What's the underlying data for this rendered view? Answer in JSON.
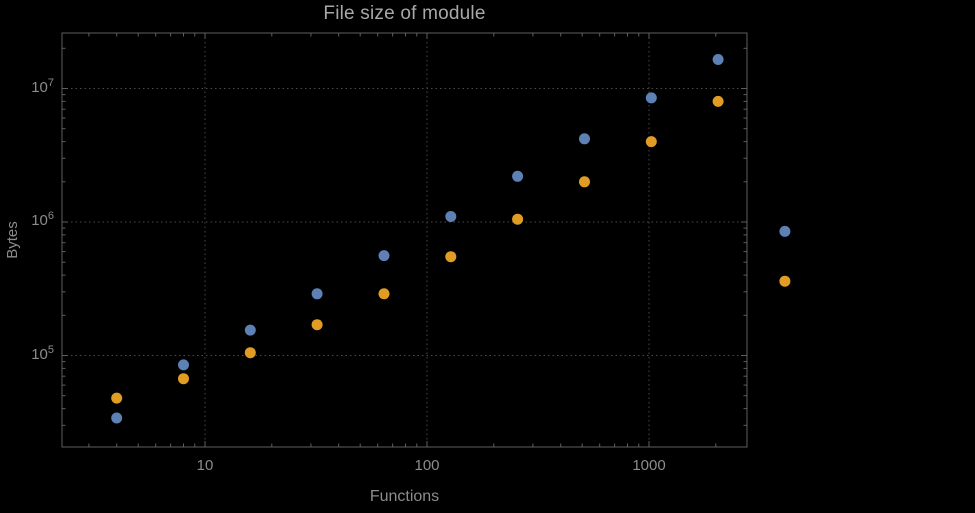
{
  "page": {
    "background": "#000000"
  },
  "chart_data": {
    "type": "scatter",
    "title": "File size of module",
    "xlabel": "Functions",
    "ylabel": "Bytes",
    "x_scale": "log",
    "y_scale": "log",
    "grid": "dotted",
    "legend": "none",
    "x_range": [
      2.3,
      2770
    ],
    "y_range": [
      21000,
      26000000
    ],
    "x": [
      4,
      8,
      16,
      32,
      64,
      128,
      256,
      512,
      1024,
      2048,
      4096
    ],
    "series": [
      {
        "name": "series-blue",
        "color": "#5E81B5",
        "values": [
          34000,
          85000,
          155000,
          290000,
          560000,
          1100000,
          2200000,
          4200000,
          8500000,
          16500000,
          850000
        ]
      },
      {
        "name": "series-orange",
        "color": "#E19C24",
        "values": [
          48000,
          67000,
          105000,
          170000,
          290000,
          550000,
          1050000,
          2000000,
          4000000,
          8000000,
          360000
        ]
      }
    ],
    "x_ticks": [
      {
        "v": 10,
        "label": "10"
      },
      {
        "v": 100,
        "label": "100"
      },
      {
        "v": 1000,
        "label": "1000"
      }
    ],
    "y_ticks": [
      {
        "v": 100000,
        "base": "10",
        "exp": "5"
      },
      {
        "v": 1000000,
        "base": "10",
        "exp": "6"
      },
      {
        "v": 10000000,
        "base": "10",
        "exp": "7"
      }
    ],
    "colors": {
      "frame": "#5e5e5e",
      "grid": "#4a4a4a",
      "text": "#8c8c8c",
      "title": "#a8a8a8"
    }
  }
}
